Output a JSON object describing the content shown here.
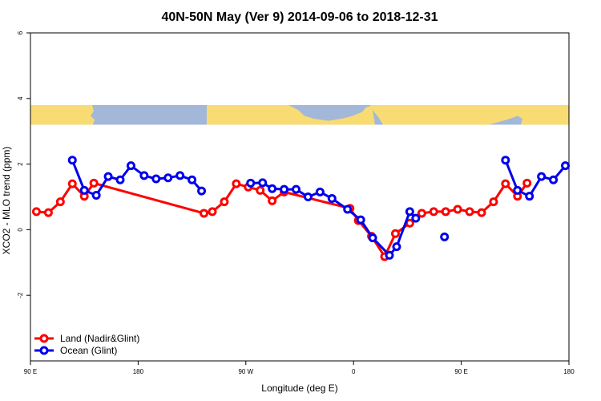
{
  "chart_data": {
    "type": "line",
    "title": "40N-50N May (Ver 9)   2014-09-06 to 2018-12-31",
    "xlabel": "Longitude (deg E)",
    "ylabel": "XCO2 - MLO trend (ppm)",
    "xlim": [
      -90,
      360
    ],
    "ylim": [
      -4,
      6
    ],
    "grid": false,
    "legend_position": "bottom-left",
    "x_ticks": [
      {
        "value": -90,
        "label": "90 E"
      },
      {
        "value": 0,
        "label": "180"
      },
      {
        "value": 90,
        "label": "90 W"
      },
      {
        "value": 180,
        "label": "0"
      },
      {
        "value": 270,
        "label": "90 E"
      },
      {
        "value": 360,
        "label": "180"
      }
    ],
    "y_ticks": [
      {
        "value": -2,
        "label": "-2"
      },
      {
        "value": 0,
        "label": "0"
      },
      {
        "value": 2,
        "label": "2"
      },
      {
        "value": 4,
        "label": "4"
      },
      {
        "value": 6,
        "label": "6"
      }
    ],
    "map_band": {
      "y_range": [
        3.2,
        3.8
      ],
      "ocean_color": "#a3b8d9",
      "land_color": "#f9db73"
    },
    "series": [
      {
        "name": "Land (Nadir&Glint)",
        "color": "#ff0000",
        "points": [
          [
            -85,
            0.55
          ],
          [
            -75,
            0.52
          ],
          [
            -65,
            0.85
          ],
          [
            -55,
            1.4
          ],
          [
            -45,
            1.02
          ],
          [
            -37,
            1.42
          ],
          [
            55,
            0.5
          ],
          [
            62,
            0.55
          ],
          [
            72,
            0.85
          ],
          [
            82,
            1.4
          ],
          [
            92,
            1.3
          ],
          [
            102,
            1.2
          ],
          [
            112,
            0.88
          ],
          [
            122,
            1.15
          ],
          [
            177,
            0.65
          ],
          [
            184,
            0.28
          ],
          [
            195,
            -0.2
          ],
          [
            206,
            -0.82
          ],
          [
            215,
            -0.12
          ],
          [
            227,
            0.2
          ],
          [
            237,
            0.5
          ],
          [
            247,
            0.55
          ],
          [
            257,
            0.55
          ],
          [
            267,
            0.62
          ],
          [
            277,
            0.55
          ],
          [
            287,
            0.52
          ],
          [
            297,
            0.85
          ],
          [
            307,
            1.4
          ],
          [
            317,
            1.02
          ],
          [
            325,
            1.42
          ]
        ]
      },
      {
        "name": "Ocean (Glint)",
        "color": "#0000ee",
        "points": [
          [
            -55,
            2.12
          ],
          [
            -45,
            1.2
          ],
          [
            -35,
            1.05
          ],
          [
            -25,
            1.62
          ],
          [
            -15,
            1.52
          ],
          [
            -6,
            1.95
          ],
          [
            5,
            1.65
          ],
          [
            15,
            1.55
          ],
          [
            25,
            1.58
          ],
          [
            35,
            1.65
          ],
          [
            45,
            1.52
          ],
          [
            53,
            1.18
          ],
          null,
          [
            94,
            1.42
          ],
          [
            104,
            1.43
          ],
          [
            112,
            1.25
          ],
          [
            122,
            1.23
          ],
          [
            132,
            1.23
          ],
          [
            142,
            1.0
          ],
          [
            152,
            1.15
          ],
          [
            162,
            0.95
          ],
          [
            175,
            0.62
          ],
          [
            186,
            0.3
          ],
          [
            196,
            -0.25
          ],
          [
            210,
            -0.78
          ],
          [
            216,
            -0.52
          ],
          [
            227,
            0.55
          ],
          [
            232,
            0.35
          ],
          null,
          [
            256,
            -0.22
          ],
          null,
          [
            307,
            2.12
          ],
          [
            317,
            1.2
          ],
          [
            327,
            1.02
          ],
          [
            337,
            1.62
          ],
          [
            347,
            1.52
          ],
          [
            357,
            1.95
          ]
        ]
      }
    ]
  }
}
